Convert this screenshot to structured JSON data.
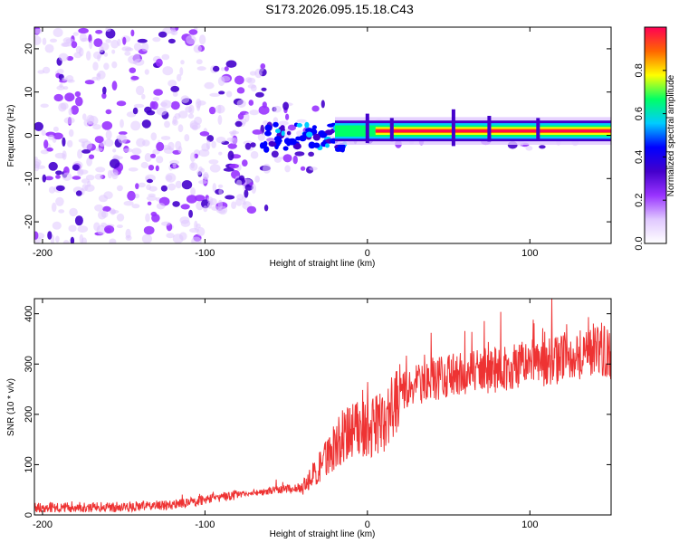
{
  "title": "S173.2026.095.15.18.C43",
  "colors": {
    "snr_line": "#ee3333",
    "colormap": [
      "#ffffff",
      "#e0c8ff",
      "#9933ff",
      "#4400cc",
      "#0000ff",
      "#00ccff",
      "#00ff66",
      "#ffff00",
      "#ff6600",
      "#ff0055"
    ]
  },
  "chart_data": [
    {
      "type": "heatmap",
      "title": "",
      "xlabel": "Height of straight line (km)",
      "ylabel": "Frequency (Hz)",
      "xlim": [
        -205,
        150
      ],
      "ylim": [
        -25,
        25
      ],
      "xticks": [
        -200,
        -100,
        0,
        100
      ],
      "xtick_labels": [
        "-200",
        "-100",
        "0",
        "100"
      ],
      "yticks": [
        -20,
        -10,
        0,
        10,
        20
      ],
      "ytick_labels": [
        "-20",
        "-10",
        "0",
        "10",
        "20"
      ],
      "band_center_hz": 1,
      "colorbar": {
        "label": "Normalized spectral amplitude",
        "range": [
          0.0,
          1.0
        ],
        "ticks": [
          0.0,
          0.2,
          0.4,
          0.6,
          0.8
        ],
        "tick_labels": [
          "0.0",
          "0.2",
          "0.4",
          "0.6",
          "0.8"
        ]
      }
    },
    {
      "type": "line",
      "title": "",
      "xlabel": "Height of straight line (km)",
      "ylabel": "SNR (10 * v/v)",
      "xlim": [
        -205,
        150
      ],
      "ylim": [
        0,
        430
      ],
      "xticks": [
        -200,
        -100,
        0,
        100
      ],
      "xtick_labels": [
        "-200",
        "-100",
        "0",
        "100"
      ],
      "yticks": [
        0,
        100,
        200,
        300,
        400
      ],
      "ytick_labels": [
        "0",
        "100",
        "200",
        "300",
        "400"
      ],
      "series": [
        {
          "name": "SNR",
          "x": [
            -205,
            -180,
            -150,
            -120,
            -100,
            -80,
            -60,
            -40,
            -30,
            -20,
            -10,
            0,
            10,
            20,
            30,
            40,
            60,
            80,
            100,
            120,
            130,
            140,
            150
          ],
          "y": [
            15,
            15,
            16,
            20,
            30,
            40,
            48,
            55,
            90,
            140,
            165,
            175,
            180,
            240,
            260,
            270,
            280,
            290,
            300,
            310,
            320,
            330,
            320
          ]
        }
      ]
    }
  ]
}
